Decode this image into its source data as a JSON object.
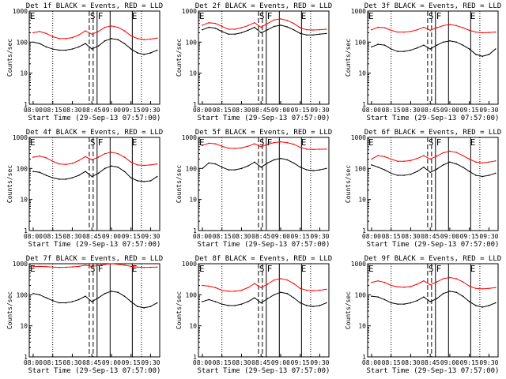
{
  "figure": {
    "xlabel": "Start Time (29-Sep-13 07:57:00)",
    "ylabel": "Counts/sec",
    "xticks": [
      "08:00",
      "08:15",
      "08:30",
      "08:45",
      "09:00",
      "09:15",
      "09:30"
    ],
    "yticks": [
      "1",
      "10",
      "100",
      "1000"
    ],
    "marker_labels": [
      "E",
      "S",
      "F",
      "E"
    ],
    "colors": {
      "events": "#000000",
      "lld": "#ff0000",
      "background": "#ffffff"
    }
  },
  "chart_data": [
    {
      "type": "line",
      "title": "Det 1f BLACK = Events, RED = LLD",
      "ylim": [
        1,
        1000
      ],
      "yscale": "log",
      "x": [
        "08:00",
        "08:05",
        "08:10",
        "08:15",
        "08:20",
        "08:25",
        "08:30",
        "08:35",
        "08:40",
        "08:45",
        "08:50",
        "08:55",
        "09:00",
        "09:05",
        "09:10",
        "09:15",
        "09:20",
        "09:25",
        "09:30",
        "09:35"
      ],
      "series": [
        {
          "name": "Events",
          "values": [
            100,
            90,
            70,
            60,
            55,
            55,
            60,
            70,
            90,
            60,
            75,
            110,
            130,
            120,
            90,
            60,
            45,
            40,
            45,
            55
          ]
        },
        {
          "name": "LLD",
          "values": [
            200,
            220,
            190,
            150,
            130,
            130,
            140,
            170,
            230,
            180,
            220,
            300,
            330,
            300,
            230,
            160,
            130,
            120,
            125,
            135
          ]
        }
      ]
    },
    {
      "type": "line",
      "title": "Det 2f BLACK = Events, RED = LLD",
      "ylim": [
        1,
        1000
      ],
      "yscale": "log",
      "x": [
        "08:00",
        "08:05",
        "08:10",
        "08:15",
        "08:20",
        "08:25",
        "08:30",
        "08:35",
        "08:40",
        "08:45",
        "08:50",
        "08:55",
        "09:00",
        "09:05",
        "09:10",
        "09:15",
        "09:20",
        "09:25",
        "09:30",
        "09:35"
      ],
      "series": [
        {
          "name": "Events",
          "values": [
            250,
            300,
            280,
            220,
            180,
            180,
            200,
            240,
            300,
            200,
            250,
            320,
            350,
            310,
            250,
            190,
            170,
            170,
            180,
            190
          ]
        },
        {
          "name": "LLD",
          "values": [
            350,
            420,
            400,
            320,
            260,
            260,
            290,
            340,
            420,
            300,
            400,
            520,
            560,
            500,
            400,
            290,
            250,
            245,
            250,
            260
          ]
        }
      ]
    },
    {
      "type": "line",
      "title": "Det 3f BLACK = Events, RED = LLD",
      "ylim": [
        1,
        1000
      ],
      "yscale": "log",
      "x": [
        "08:00",
        "08:05",
        "08:10",
        "08:15",
        "08:20",
        "08:25",
        "08:30",
        "08:35",
        "08:40",
        "08:45",
        "08:50",
        "08:55",
        "09:00",
        "09:05",
        "09:10",
        "09:15",
        "09:20",
        "09:25",
        "09:30",
        "09:35"
      ],
      "series": [
        {
          "name": "Events",
          "values": [
            70,
            85,
            80,
            60,
            50,
            50,
            55,
            65,
            80,
            60,
            80,
            100,
            110,
            100,
            80,
            60,
            40,
            35,
            40,
            60
          ]
        },
        {
          "name": "LLD",
          "values": [
            250,
            300,
            290,
            240,
            210,
            210,
            220,
            250,
            300,
            240,
            290,
            340,
            370,
            340,
            290,
            240,
            210,
            200,
            205,
            210
          ]
        }
      ]
    },
    {
      "type": "line",
      "title": "Det 4f BLACK = Events, RED = LLD",
      "ylim": [
        1,
        1000
      ],
      "yscale": "log",
      "x": [
        "08:00",
        "08:05",
        "08:10",
        "08:15",
        "08:20",
        "08:25",
        "08:30",
        "08:35",
        "08:40",
        "08:45",
        "08:50",
        "08:55",
        "09:00",
        "09:05",
        "09:10",
        "09:15",
        "09:20",
        "09:25",
        "09:30",
        "09:35"
      ],
      "series": [
        {
          "name": "Events",
          "values": [
            80,
            75,
            60,
            50,
            45,
            45,
            50,
            60,
            80,
            55,
            70,
            100,
            120,
            110,
            80,
            50,
            40,
            38,
            40,
            55
          ]
        },
        {
          "name": "LLD",
          "values": [
            230,
            250,
            220,
            170,
            140,
            135,
            145,
            180,
            240,
            190,
            230,
            300,
            330,
            300,
            230,
            160,
            130,
            125,
            130,
            140
          ]
        }
      ]
    },
    {
      "type": "line",
      "title": "Det 5f BLACK = Events, RED = LLD",
      "ylim": [
        1,
        1000
      ],
      "yscale": "log",
      "x": [
        "08:00",
        "08:05",
        "08:10",
        "08:15",
        "08:20",
        "08:25",
        "08:30",
        "08:35",
        "08:40",
        "08:45",
        "08:50",
        "08:55",
        "09:00",
        "09:05",
        "09:10",
        "09:15",
        "09:20",
        "09:25",
        "09:30",
        "09:35"
      ],
      "series": [
        {
          "name": "Events",
          "values": [
            100,
            150,
            140,
            110,
            90,
            90,
            100,
            120,
            160,
            110,
            150,
            190,
            210,
            190,
            150,
            110,
            90,
            85,
            90,
            100
          ]
        },
        {
          "name": "LLD",
          "values": [
            550,
            650,
            620,
            520,
            450,
            440,
            460,
            520,
            620,
            500,
            600,
            680,
            720,
            680,
            600,
            480,
            420,
            410,
            415,
            420
          ]
        }
      ]
    },
    {
      "type": "line",
      "title": "Det 6f BLACK = Events, RED = LLD",
      "ylim": [
        1,
        1000
      ],
      "yscale": "log",
      "x": [
        "08:00",
        "08:05",
        "08:10",
        "08:15",
        "08:20",
        "08:25",
        "08:30",
        "08:35",
        "08:40",
        "08:45",
        "08:50",
        "08:55",
        "09:00",
        "09:05",
        "09:10",
        "09:15",
        "09:20",
        "09:25",
        "09:30",
        "09:35"
      ],
      "series": [
        {
          "name": "Events",
          "values": [
            130,
            110,
            90,
            70,
            60,
            60,
            65,
            80,
            110,
            75,
            95,
            130,
            160,
            140,
            110,
            80,
            60,
            55,
            60,
            70
          ]
        },
        {
          "name": "LLD",
          "values": [
            200,
            260,
            240,
            200,
            170,
            170,
            180,
            210,
            260,
            200,
            250,
            320,
            360,
            330,
            260,
            200,
            160,
            150,
            160,
            175
          ]
        }
      ]
    },
    {
      "type": "line",
      "title": "Det 7f BLACK = Events, RED = LLD",
      "ylim": [
        1,
        1000
      ],
      "yscale": "log",
      "x": [
        "08:00",
        "08:05",
        "08:10",
        "08:15",
        "08:20",
        "08:25",
        "08:30",
        "08:35",
        "08:40",
        "08:45",
        "08:50",
        "08:55",
        "09:00",
        "09:05",
        "09:10",
        "09:15",
        "09:20",
        "09:25",
        "09:30",
        "09:35"
      ],
      "series": [
        {
          "name": "Events",
          "values": [
            110,
            100,
            80,
            65,
            55,
            55,
            60,
            70,
            90,
            60,
            80,
            110,
            130,
            120,
            90,
            60,
            42,
            38,
            42,
            55
          ]
        },
        {
          "name": "LLD",
          "values": [
            800,
            820,
            810,
            780,
            760,
            770,
            790,
            820,
            900,
            820,
            880,
            950,
            1000,
            960,
            900,
            820,
            780,
            760,
            770,
            780
          ]
        }
      ]
    },
    {
      "type": "line",
      "title": "Det 8f BLACK = Events, RED = LLD",
      "ylim": [
        1,
        1000
      ],
      "yscale": "log",
      "x": [
        "08:00",
        "08:05",
        "08:10",
        "08:15",
        "08:20",
        "08:25",
        "08:30",
        "08:35",
        "08:40",
        "08:45",
        "08:50",
        "08:55",
        "09:00",
        "09:05",
        "09:10",
        "09:15",
        "09:20",
        "09:25",
        "09:30",
        "09:35"
      ],
      "series": [
        {
          "name": "Events",
          "values": [
            60,
            70,
            60,
            50,
            45,
            45,
            50,
            60,
            80,
            55,
            75,
            100,
            120,
            110,
            80,
            55,
            45,
            42,
            45,
            55
          ]
        },
        {
          "name": "LLD",
          "values": [
            200,
            190,
            170,
            140,
            130,
            130,
            140,
            170,
            230,
            170,
            220,
            300,
            330,
            300,
            230,
            160,
            140,
            135,
            140,
            150
          ]
        }
      ]
    },
    {
      "type": "line",
      "title": "Det 9f BLACK = Events, RED = LLD",
      "ylim": [
        1,
        1000
      ],
      "yscale": "log",
      "x": [
        "08:00",
        "08:05",
        "08:10",
        "08:15",
        "08:20",
        "08:25",
        "08:30",
        "08:35",
        "08:40",
        "08:45",
        "08:50",
        "08:55",
        "09:00",
        "09:05",
        "09:10",
        "09:15",
        "09:20",
        "09:25",
        "09:30",
        "09:35"
      ],
      "series": [
        {
          "name": "Events",
          "values": [
            90,
            85,
            70,
            55,
            50,
            50,
            55,
            65,
            85,
            60,
            75,
            110,
            130,
            120,
            90,
            60,
            45,
            40,
            45,
            55
          ]
        },
        {
          "name": "LLD",
          "values": [
            250,
            280,
            250,
            200,
            180,
            175,
            185,
            220,
            280,
            210,
            260,
            330,
            360,
            330,
            260,
            190,
            160,
            155,
            160,
            170
          ]
        }
      ]
    }
  ]
}
